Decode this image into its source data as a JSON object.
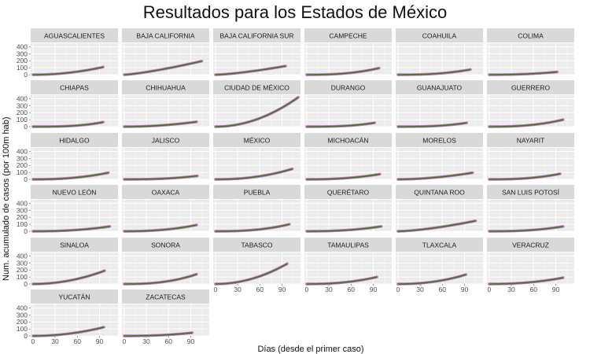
{
  "chart_data": {
    "type": "line",
    "title": "Resultados para los Estados de México",
    "ylabel": "Num. acumulado de casos (por 100m hab)",
    "xlabel": "Días (desde el primer caso)",
    "facet_layout": "6 columns x 6 rows (wrap)",
    "panel_background": "#ebebeb",
    "strip_background": "#d9d9d9",
    "point_color": "#c974c5",
    "line_color": "#3a7a1d",
    "ylim": [
      0,
      450
    ],
    "xlim": [
      -3,
      115
    ],
    "yticks": [
      0,
      100,
      200,
      300,
      400
    ],
    "xticks": [
      0,
      30,
      60,
      90
    ],
    "ytick_labels": [
      "0",
      "100",
      "200",
      "300",
      "400"
    ],
    "xtick_labels": [
      "0",
      "30",
      "60",
      "90"
    ],
    "grid": true,
    "panels": [
      {
        "name": "AGUASCALIENTES",
        "xmax": 95,
        "ymax": 110,
        "shape": 2.0
      },
      {
        "name": "BAJA CALIFORNIA",
        "xmax": 105,
        "ymax": 195,
        "shape": 1.3
      },
      {
        "name": "BAJA CALIFORNIA SUR",
        "xmax": 95,
        "ymax": 125,
        "shape": 1.4
      },
      {
        "name": "CAMPECHE",
        "xmax": 98,
        "ymax": 95,
        "shape": 2.5
      },
      {
        "name": "COAHUILA",
        "xmax": 98,
        "ymax": 75,
        "shape": 2.5
      },
      {
        "name": "COLIMA",
        "xmax": 92,
        "ymax": 40,
        "shape": 2.2
      },
      {
        "name": "CHIAPAS",
        "xmax": 95,
        "ymax": 65,
        "shape": 3.0
      },
      {
        "name": "CHIHUAHUA",
        "xmax": 98,
        "ymax": 70,
        "shape": 2.0
      },
      {
        "name": "CIUDAD DE MÉXICO",
        "xmax": 112,
        "ymax": 420,
        "shape": 2.0
      },
      {
        "name": "DURANGO",
        "xmax": 92,
        "ymax": 55,
        "shape": 2.8
      },
      {
        "name": "GUANAJUATO",
        "xmax": 93,
        "ymax": 55,
        "shape": 2.8
      },
      {
        "name": "GUERRERO",
        "xmax": 100,
        "ymax": 100,
        "shape": 2.5
      },
      {
        "name": "HIDALGO",
        "xmax": 102,
        "ymax": 95,
        "shape": 2.3
      },
      {
        "name": "JALISCO",
        "xmax": 99,
        "ymax": 50,
        "shape": 2.5
      },
      {
        "name": "MÉXICO",
        "xmax": 104,
        "ymax": 150,
        "shape": 2.2
      },
      {
        "name": "MICHOACÁN",
        "xmax": 99,
        "ymax": 75,
        "shape": 2.3
      },
      {
        "name": "MORELOS",
        "xmax": 101,
        "ymax": 95,
        "shape": 1.8
      },
      {
        "name": "NAYARIT",
        "xmax": 96,
        "ymax": 80,
        "shape": 2.5
      },
      {
        "name": "NUEVO LEÓN",
        "xmax": 104,
        "ymax": 70,
        "shape": 2.3
      },
      {
        "name": "OAXACA",
        "xmax": 98,
        "ymax": 90,
        "shape": 2.3
      },
      {
        "name": "PUEBLA",
        "xmax": 100,
        "ymax": 100,
        "shape": 2.5
      },
      {
        "name": "QUERÉTARO",
        "xmax": 101,
        "ymax": 70,
        "shape": 2.3
      },
      {
        "name": "QUINTANA ROO",
        "xmax": 105,
        "ymax": 150,
        "shape": 1.5
      },
      {
        "name": "SAN LUIS POTOSÍ",
        "xmax": 100,
        "ymax": 70,
        "shape": 2.5
      },
      {
        "name": "SINALOA",
        "xmax": 97,
        "ymax": 190,
        "shape": 2.0
      },
      {
        "name": "SONORA",
        "xmax": 98,
        "ymax": 140,
        "shape": 2.5
      },
      {
        "name": "TABASCO",
        "xmax": 97,
        "ymax": 290,
        "shape": 2.0
      },
      {
        "name": "TAMAULIPAS",
        "xmax": 95,
        "ymax": 100,
        "shape": 2.3
      },
      {
        "name": "TLAXCALA",
        "xmax": 92,
        "ymax": 135,
        "shape": 2.2
      },
      {
        "name": "VERACRUZ",
        "xmax": 100,
        "ymax": 90,
        "shape": 2.2
      },
      {
        "name": "YUCATÁN",
        "xmax": 96,
        "ymax": 125,
        "shape": 2.0
      },
      {
        "name": "ZACATECAS",
        "xmax": 92,
        "ymax": 45,
        "shape": 2.3
      }
    ]
  }
}
